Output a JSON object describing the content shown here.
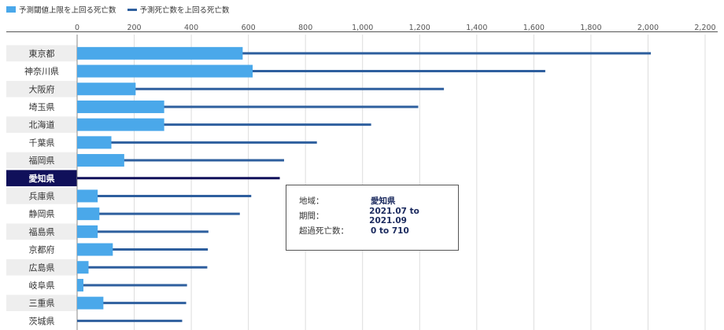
{
  "legend": {
    "series1_label": "予測閾値上限を上回る死亡数",
    "series2_label": "予測死亡数を上回る死亡数"
  },
  "colors": {
    "bar": "#4aa8ea",
    "line": "#2e5f9e",
    "highlight_bg": "#10105a",
    "highlight_line": "#10105a",
    "row_band": "#eeeeee",
    "grid": "#dddddd"
  },
  "chart_data": {
    "type": "bar",
    "orientation": "horizontal",
    "categories": [
      "東京都",
      "神奈川県",
      "大阪府",
      "埼玉県",
      "北海道",
      "千葉県",
      "福岡県",
      "愛知県",
      "兵庫県",
      "静岡県",
      "福島県",
      "京都府",
      "広島県",
      "岐阜県",
      "三重県",
      "茨城県"
    ],
    "series": [
      {
        "name": "予測閾値上限を上回る死亡数",
        "mark": "bar",
        "values": [
          580,
          615,
          205,
          305,
          305,
          120,
          165,
          0,
          72,
          78,
          72,
          125,
          40,
          22,
          92,
          0
        ]
      },
      {
        "name": "予測死亡数を上回る死亡数",
        "mark": "line",
        "values": [
          2010,
          1640,
          1285,
          1195,
          1030,
          840,
          725,
          710,
          610,
          570,
          460,
          458,
          456,
          385,
          382,
          368
        ]
      }
    ],
    "x_ticks": [
      "0",
      "200",
      "400",
      "600",
      "800",
      "1,000",
      "1,200",
      "1,400",
      "1,600",
      "1,800",
      "2,000",
      "2,200"
    ],
    "xlim": [
      0,
      2200
    ],
    "highlighted_category": "愛知県",
    "grid": true
  },
  "tooltip": {
    "region_label": "地域：",
    "region_value": "愛知県",
    "period_label": "期間：",
    "period_value": "2021.07 to 2021.09",
    "excess_label": "超過死亡数：",
    "excess_value": "0 to 710"
  }
}
